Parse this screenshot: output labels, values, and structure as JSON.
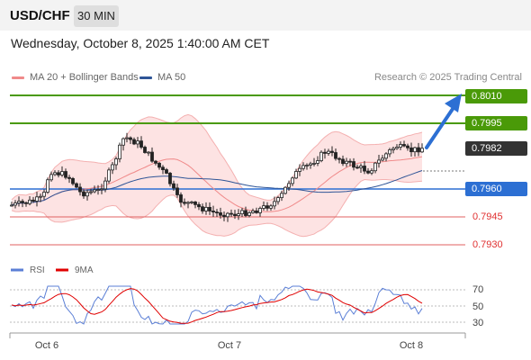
{
  "header": {
    "symbol": "USD/CHF",
    "timeframe": "30 MIN"
  },
  "datetime": "Wednesday, October 8, 2025 1:40:00 AM CET",
  "legend": {
    "ma20": "MA 20 + Bollinger Bands",
    "ma50": "MA 50",
    "rsi": "RSI",
    "ma9": "9MA",
    "colors": {
      "ma20": "#f08a8a",
      "ma50": "#2f5597",
      "rsi": "#5b7fd6",
      "ma9": "#e00000"
    }
  },
  "credit": "Research © 2025 Trading Central",
  "levels": {
    "target": "0.8010",
    "resistance": "0.7995",
    "last": "0.7982",
    "pivot": "0.7960",
    "support1": "0.7945",
    "support2": "0.7930"
  },
  "rsi_axis": [
    "70",
    "50",
    "30"
  ],
  "x_axis": [
    "Oct 6",
    "Oct 7",
    "Oct 8"
  ],
  "colors": {
    "green": "#4a9a08",
    "blue": "#2c6fd3",
    "red": "#e06060",
    "dark": "#333333"
  }
}
